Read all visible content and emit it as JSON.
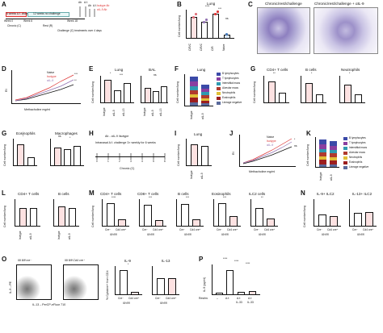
{
  "panels": {
    "A": {
      "label": "A",
      "timeline_labels": [
        "Week 0",
        "Week 6",
        "Week 18",
        "Chronic (C)",
        "Rest (R)",
        "Challenge (C) treatments over 4 days"
      ],
      "box_1": "6 weeks A.f. challenge",
      "box_2": "12 weeks no challenge",
      "arrows": [
        "Ab",
        "A.f.",
        "Ab",
        "A.f."
      ],
      "legend": [
        "Isotype Ab",
        "αIL-9 Ab"
      ]
    },
    "B": {
      "label": "B",
      "title": "Lung",
      "ylabel": "Cell number/lung",
      "categories": [
        "C/R/C",
        "C/R/C",
        "C/R",
        "Naive"
      ],
      "sublabels": [
        "isotype",
        "αIL-9"
      ],
      "stats": [
        "****",
        "***",
        "ns"
      ],
      "colors": [
        "#f3a0a8",
        "#ffffff",
        "#ffffff",
        "#7fa7d6"
      ]
    },
    "C": {
      "label": "C",
      "titles": [
        "Chronic/rest/challenge",
        "Chronic/rest/challenge + αIL-9"
      ]
    },
    "D": {
      "label": "D",
      "ylabel": "RI",
      "xlabel": "Methacholine mg/ml",
      "legend": [
        "Naive",
        "Isotype",
        "αIL-9"
      ],
      "stats": [
        "***",
        "**"
      ]
    },
    "E": {
      "label": "E",
      "titles": [
        "Lung",
        "BAL"
      ],
      "ylabel": "Cell number/lung",
      "categories": [
        "Isotype",
        "αIL-9",
        "αIL-13"
      ],
      "stats": [
        "*",
        "***",
        "ns"
      ]
    },
    "F": {
      "label": "F",
      "title": "Lung",
      "ylabel": "Cell number/lung",
      "categories": [
        "Isotype",
        "αIL-9"
      ],
      "legend": [
        "B lymphocytes",
        "T lymphocytes",
        "Interstitial macs",
        "Alveolar macs",
        "Neutrophils",
        "Eosinophils",
        "Lineage negative"
      ],
      "legend_colors": [
        "#3b4aa8",
        "#8a3fa0",
        "#2f9ab0",
        "#b03a2e",
        "#e0bf38",
        "#9c1e1e",
        "#5a6a9c"
      ]
    },
    "G": {
      "label": "G",
      "titles": [
        "CD4+ T cells",
        "B cells",
        "Neutrophils"
      ],
      "ylabel": "Cell number/lung",
      "stats": [
        "**",
        "*",
        "*"
      ]
    },
    "G2": {
      "label": "G",
      "titles": [
        "Eosinophils",
        "Macrophages"
      ],
      "ylabel": "Cell number/lung",
      "stats": [
        "*",
        "ns",
        "*"
      ]
    },
    "H": {
      "label": "H",
      "arrow_text": "Ab - αIL-9 /isotype",
      "description": "Intranasal A.f. challenge 3× weekly for 6 weeks",
      "ticks": [
        "0",
        "1",
        "2",
        "3",
        "4",
        "5",
        "6"
      ],
      "caption": "Chronic (C)"
    },
    "I": {
      "label": "I",
      "title": "Lung",
      "ylabel": "Cell number/lung",
      "categories": [
        "Isotype",
        "αIL-9"
      ]
    },
    "J": {
      "label": "J",
      "ylabel": "RI",
      "xlabel": "Methacholine mg/ml",
      "legend": [
        "Naive",
        "Isotype",
        "αIL-9"
      ],
      "stats": [
        "*",
        "ns"
      ]
    },
    "K": {
      "label": "K",
      "ylabel": "Cell number/lung",
      "categories": [
        "Isotype",
        "αIL-9"
      ],
      "legend": [
        "B lymphocytes",
        "T lymphocytes",
        "Interstitial macs",
        "Alveolar macs",
        "Neutrophils",
        "Eosinophils",
        "Lineage negative"
      ]
    },
    "L": {
      "label": "L",
      "titles": [
        "CD4+ T cells",
        "B cells"
      ],
      "ylabel": "Cell number/lung",
      "categories": [
        "Isotype",
        "αIL-9"
      ]
    },
    "M": {
      "label": "M",
      "titles": [
        "CD4+ T cells",
        "CD8+ T cells",
        "B cells",
        "Eosinophils",
        "ILC2 cells"
      ],
      "ylabel": "Cell number/lung",
      "categories": [
        "Cre⁻",
        "Cd4 cre⁺"
      ],
      "genotype": "Il9 fl/fl",
      "stats": [
        "****",
        "***",
        "***",
        "***",
        "**"
      ]
    },
    "N": {
      "label": "N",
      "titles": [
        "IL-9+ ILC2",
        "IL-13+ ILC2"
      ],
      "ylabel": "Cell number/lung",
      "categories": [
        "Cre⁻",
        "Cd4 cre⁺"
      ],
      "genotype": "Il9 fl/fl"
    },
    "O": {
      "label": "O",
      "plot_titles": [
        "Il9 fl/fl cre⁻",
        "Il9 fl/fl Cd4 cre⁺"
      ],
      "ylabel": "IL-9 – PE",
      "xlabel": "IL-13 – PerCP-eFluor 710",
      "bar_titles": [
        "IL-9",
        "IL-13"
      ],
      "bar_ylabel": "% Cytokine+ from CD4",
      "categories": [
        "Cre⁻",
        "Cd4 cre⁺"
      ],
      "genotype": "Il9 fl/fl",
      "stats": [
        "*"
      ]
    },
    "P": {
      "label": "P",
      "ylabel": "IL-9 (pg/ml)",
      "restim_label": "Restim:",
      "restim": [
        "–",
        "A.f.",
        "A.f.",
        "A.f."
      ],
      "restim2": [
        "IL-33",
        "IL-33"
      ],
      "stats": [
        "****",
        "****",
        "****"
      ]
    }
  }
}
